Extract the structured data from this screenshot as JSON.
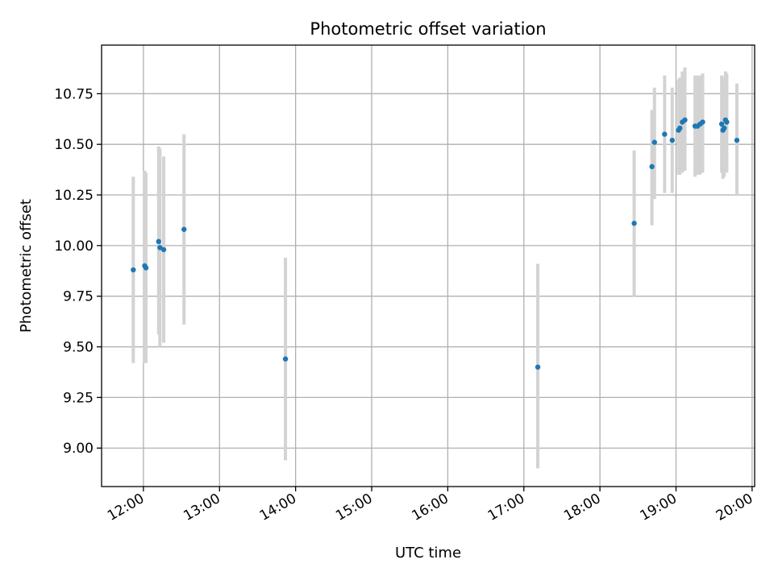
{
  "chart_data": {
    "type": "scatter",
    "title": "Photometric offset variation",
    "xlabel": "UTC time",
    "ylabel": "Photometric offset",
    "x_tick_labels": [
      "12:00",
      "13:00",
      "14:00",
      "15:00",
      "16:00",
      "17:00",
      "18:00",
      "19:00",
      "20:00"
    ],
    "x_ticks_hours": [
      12,
      13,
      14,
      15,
      16,
      17,
      18,
      19,
      20
    ],
    "y_tick_labels": [
      "9.00",
      "9.25",
      "9.50",
      "9.75",
      "10.00",
      "10.25",
      "10.50",
      "10.75"
    ],
    "y_ticks": [
      9.0,
      9.25,
      9.5,
      9.75,
      10.0,
      10.25,
      10.5,
      10.75
    ],
    "xlim": [
      "11:27",
      "20:02"
    ],
    "ylim": [
      8.81,
      10.99
    ],
    "grid": true,
    "colors": {
      "points": "#1f77b4",
      "error_bars": "#d3d3d3",
      "grid": "#b0b0b0"
    },
    "points": [
      {
        "x": "11:52",
        "y": 9.88,
        "err_low": 9.42,
        "err_high": 10.34
      },
      {
        "x": "12:01",
        "y": 9.9,
        "err_low": 9.42,
        "err_high": 10.37
      },
      {
        "x": "12:02",
        "y": 9.89,
        "err_low": 9.42,
        "err_high": 10.36
      },
      {
        "x": "12:12",
        "y": 10.02,
        "err_low": 9.56,
        "err_high": 10.49
      },
      {
        "x": "12:13",
        "y": 9.99,
        "err_low": 9.5,
        "err_high": 10.48
      },
      {
        "x": "12:16",
        "y": 9.98,
        "err_low": 9.52,
        "err_high": 10.44
      },
      {
        "x": "12:32",
        "y": 10.08,
        "err_low": 9.61,
        "err_high": 10.55
      },
      {
        "x": "13:52",
        "y": 9.44,
        "err_low": 8.94,
        "err_high": 9.94
      },
      {
        "x": "17:11",
        "y": 9.4,
        "err_low": 8.9,
        "err_high": 9.91
      },
      {
        "x": "18:27",
        "y": 10.11,
        "err_low": 9.75,
        "err_high": 10.47
      },
      {
        "x": "18:41",
        "y": 10.39,
        "err_low": 10.1,
        "err_high": 10.67
      },
      {
        "x": "18:43",
        "y": 10.51,
        "err_low": 10.23,
        "err_high": 10.78
      },
      {
        "x": "18:51",
        "y": 10.55,
        "err_low": 10.26,
        "err_high": 10.84
      },
      {
        "x": "18:57",
        "y": 10.52,
        "err_low": 10.26,
        "err_high": 10.78
      },
      {
        "x": "19:02",
        "y": 10.57,
        "err_low": 10.35,
        "err_high": 10.82
      },
      {
        "x": "19:03",
        "y": 10.58,
        "err_low": 10.35,
        "err_high": 10.83
      },
      {
        "x": "19:05",
        "y": 10.61,
        "err_low": 10.36,
        "err_high": 10.86
      },
      {
        "x": "19:07",
        "y": 10.62,
        "err_low": 10.37,
        "err_high": 10.88
      },
      {
        "x": "19:15",
        "y": 10.59,
        "err_low": 10.34,
        "err_high": 10.84
      },
      {
        "x": "19:17",
        "y": 10.59,
        "err_low": 10.35,
        "err_high": 10.84
      },
      {
        "x": "19:19",
        "y": 10.6,
        "err_low": 10.35,
        "err_high": 10.84
      },
      {
        "x": "19:21",
        "y": 10.61,
        "err_low": 10.36,
        "err_high": 10.85
      },
      {
        "x": "19:36",
        "y": 10.6,
        "err_low": 10.36,
        "err_high": 10.84
      },
      {
        "x": "19:37",
        "y": 10.57,
        "err_low": 10.33,
        "err_high": 10.82
      },
      {
        "x": "19:38",
        "y": 10.58,
        "err_low": 10.34,
        "err_high": 10.83
      },
      {
        "x": "19:39",
        "y": 10.62,
        "err_low": 10.38,
        "err_high": 10.86
      },
      {
        "x": "19:40",
        "y": 10.61,
        "err_low": 10.36,
        "err_high": 10.85
      },
      {
        "x": "19:48",
        "y": 10.52,
        "err_low": 10.25,
        "err_high": 10.8
      }
    ]
  }
}
